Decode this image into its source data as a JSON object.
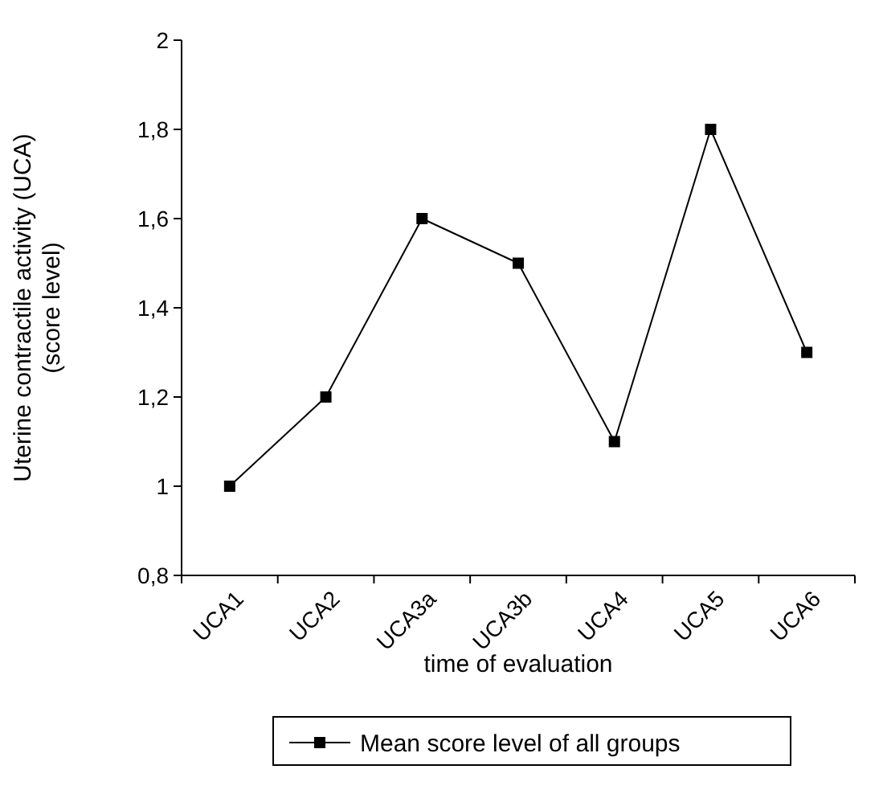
{
  "chart_data": {
    "type": "line",
    "xlabel": "time of evaluation",
    "ylabel": "Uterine contractile activity (UCA)\n(score level)",
    "categories": [
      "UCA1",
      "UCA2",
      "UCA3a",
      "UCA3b",
      "UCA4",
      "UCA5",
      "UCA6"
    ],
    "series": [
      {
        "name": "Mean score level of all groups",
        "color": "#000000",
        "values": [
          1,
          1.2,
          1.6,
          1.5,
          1.1,
          1.8,
          1.3
        ]
      }
    ],
    "ylim": [
      0.8,
      2
    ],
    "yticks": [
      {
        "value": 0.8,
        "label": "0,8"
      },
      1,
      {
        "value": 1.2,
        "label": "1,2"
      },
      {
        "value": 1.4,
        "label": "1,4"
      },
      {
        "value": 1.6,
        "label": "1,6"
      },
      {
        "value": 1.8,
        "label": "1,8"
      },
      2
    ],
    "grid": false,
    "legend": "bottom",
    "marker": "square",
    "line_style": "solid"
  }
}
